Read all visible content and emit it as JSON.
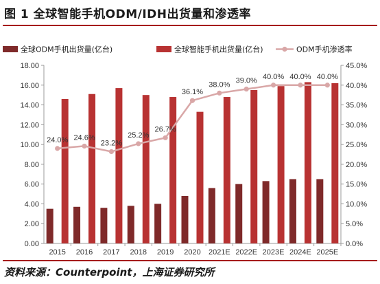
{
  "title": "图 1  全球智能手机ODM/IDH出货量和渗透率",
  "source": "资料来源：Counterpoint，上海证券研究所",
  "chart_data": {
    "type": "bar",
    "categories": [
      "2015",
      "2016",
      "2017",
      "2018",
      "2019",
      "2020",
      "2021E",
      "2022E",
      "2023E",
      "2024E",
      "2025E"
    ],
    "series": [
      {
        "name": "全球ODM手机出货量(亿台)",
        "type": "bar",
        "axis": "left",
        "color": "#7f2a2a",
        "values": [
          3.5,
          3.7,
          3.6,
          3.8,
          4.0,
          4.8,
          5.6,
          6.0,
          6.3,
          6.5,
          6.5
        ]
      },
      {
        "name": "全球智能手机出货量(亿台)",
        "type": "bar",
        "axis": "left",
        "color": "#b83232",
        "values": [
          14.6,
          15.1,
          15.7,
          15.0,
          14.8,
          13.3,
          14.8,
          15.5,
          15.9,
          16.3,
          16.2
        ]
      },
      {
        "name": "ODM手机渗透率",
        "type": "line",
        "axis": "right",
        "color": "#d9a7a7",
        "values": [
          24.0,
          24.6,
          23.2,
          25.2,
          26.7,
          36.1,
          38.0,
          39.0,
          40.0,
          40.0,
          40.0
        ],
        "labels": [
          "24.0%",
          "24.6%",
          "23.2%",
          "25.2%",
          "26.7%",
          "36.1%",
          "38.0%",
          "39.0%",
          "40.0%",
          "40.0%",
          "40.0%"
        ]
      }
    ],
    "y_left": {
      "min": 0,
      "max": 18,
      "step": 2,
      "tick_labels": [
        "0.00",
        "2.00",
        "4.00",
        "6.00",
        "8.00",
        "10.00",
        "12.00",
        "14.00",
        "16.00",
        "18.00"
      ]
    },
    "y_right": {
      "min": 0,
      "max": 45,
      "step": 5,
      "tick_labels": [
        "0.0%",
        "5.0%",
        "10.0%",
        "15.0%",
        "20.0%",
        "25.0%",
        "30.0%",
        "35.0%",
        "40.0%",
        "45.0%"
      ]
    },
    "grid": false,
    "legend": "top"
  }
}
